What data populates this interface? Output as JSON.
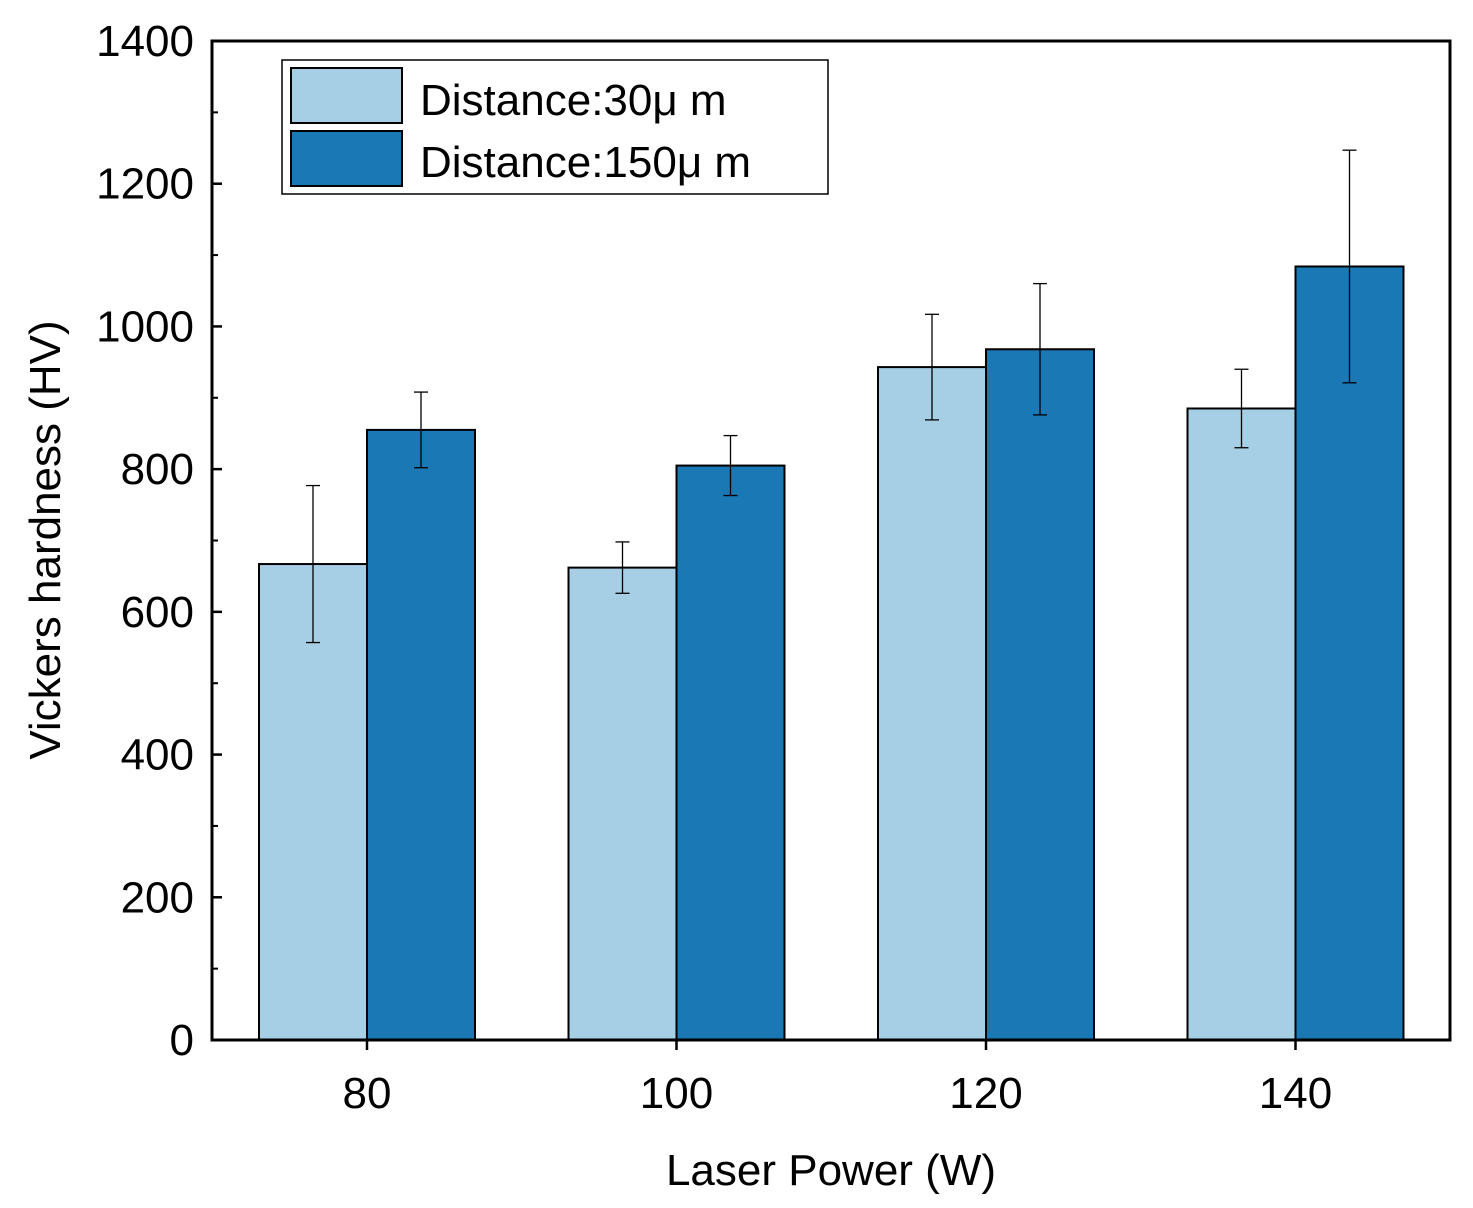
{
  "chart_data": {
    "type": "bar",
    "title": "",
    "xlabel": "Laser Power (W)",
    "ylabel": "Vickers hardness (HV)",
    "categories": [
      "80",
      "100",
      "120",
      "140"
    ],
    "ylim": [
      0,
      1400
    ],
    "yticks": [
      0,
      200,
      400,
      600,
      800,
      1000,
      1200,
      1400
    ],
    "legend_position": "top-left",
    "series": [
      {
        "name": "Distance:30μ m",
        "color": "#a6cee4",
        "values": [
          667,
          662,
          943,
          885
        ],
        "errors": [
          110,
          36,
          74,
          55
        ]
      },
      {
        "name": "Distance:150μ m",
        "color": "#1a79b5",
        "values": [
          855,
          805,
          968,
          1084
        ],
        "errors": [
          53,
          42,
          92,
          163
        ]
      }
    ]
  }
}
